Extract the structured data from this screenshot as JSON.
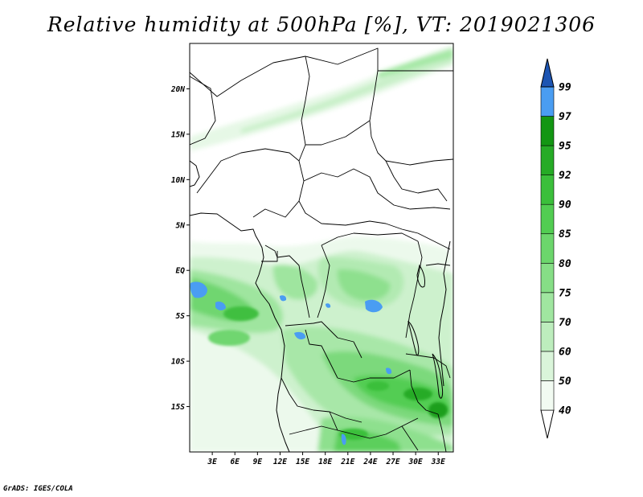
{
  "title": "Relative humidity at 500hPa [%], VT: 2019021306",
  "credit": "GrADS: IGES/COLA",
  "map": {
    "lon_range": [
      0,
      35
    ],
    "lat_range": [
      -20,
      25
    ],
    "lat_ticks": [
      "20N",
      "15N",
      "10N",
      "5N",
      "EQ",
      "5S",
      "10S",
      "15S"
    ],
    "lat_tick_values": [
      20,
      15,
      10,
      5,
      0,
      -5,
      -10,
      -15
    ],
    "lon_ticks": [
      "3E",
      "6E",
      "9E",
      "12E",
      "15E",
      "18E",
      "21E",
      "24E",
      "27E",
      "30E",
      "33E"
    ],
    "lon_tick_values": [
      3,
      6,
      9,
      12,
      15,
      18,
      21,
      24,
      27,
      30,
      33
    ]
  },
  "colorbar": {
    "labels": [
      "40",
      "50",
      "60",
      "70",
      "75",
      "80",
      "85",
      "90",
      "92",
      "95",
      "97",
      "99"
    ],
    "colors": [
      "#f2fbf2",
      "#daf5da",
      "#bdedbd",
      "#a0e6a0",
      "#86de86",
      "#6cd66c",
      "#52cd52",
      "#3bbf3b",
      "#26ab26",
      "#139613",
      "#4a9df2",
      "#2a72d9",
      "#1d55b3"
    ]
  }
}
